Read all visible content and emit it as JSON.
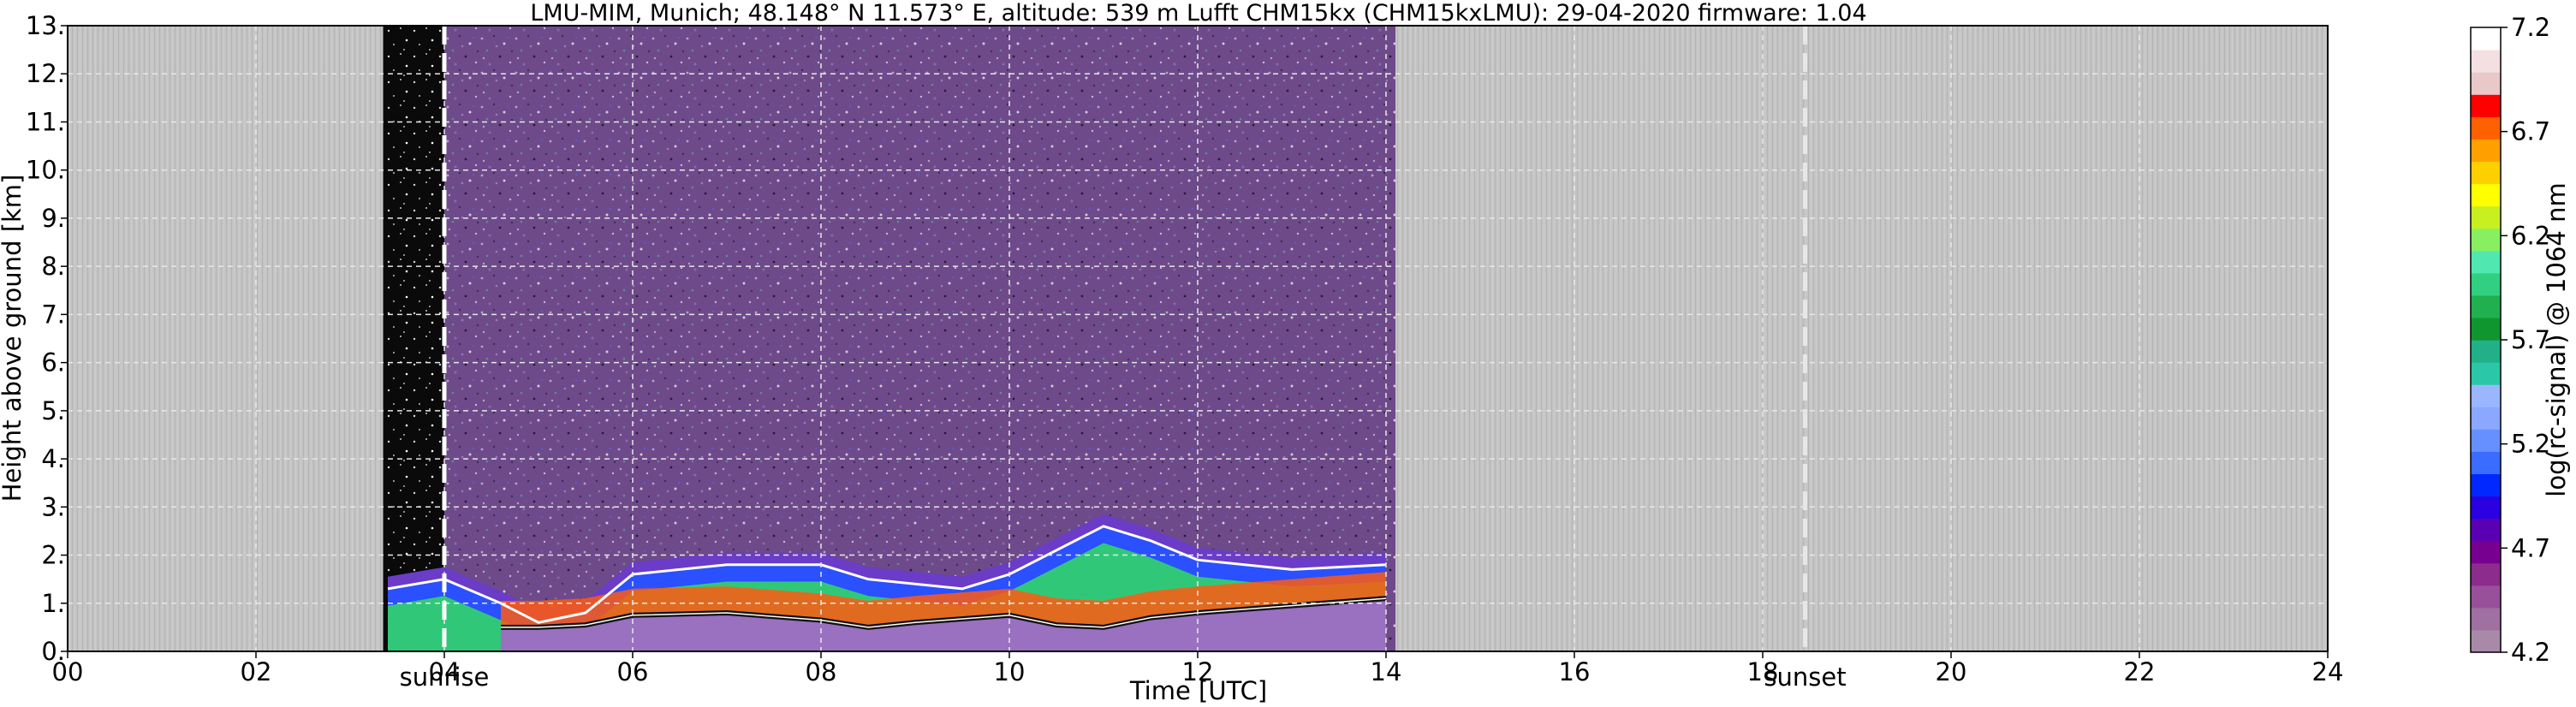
{
  "chart_data": {
    "type": "heatmap",
    "title": "LMU-MIM, Munich; 48.148° N 11.573° E, altitude: 539 m    Lufft CHM15kx (CHM15kxLMU): 29-04-2020    firmware: 1.04",
    "xlabel": "Time [UTC]",
    "ylabel": "Height above ground [km]",
    "xlim": [
      0,
      24
    ],
    "ylim": [
      0,
      13
    ],
    "x_ticks": [
      "00",
      "02",
      "04",
      "06",
      "08",
      "10",
      "12",
      "14",
      "16",
      "18",
      "20",
      "22",
      "24"
    ],
    "y_ticks": [
      "0.",
      "1.",
      "2.",
      "3.",
      "4.",
      "5.",
      "6.",
      "7.",
      "8.",
      "9.",
      "10.",
      "11.",
      "12.",
      "13."
    ],
    "grid": true,
    "data_window": [
      3.35,
      14.1
    ],
    "events": [
      {
        "label": "sunrise",
        "time": 4.0
      },
      {
        "label": "sunset",
        "time": 18.45
      }
    ],
    "colorbar": {
      "label": "log(rc-signal) @ 1064 nm",
      "range": [
        4.2,
        7.2
      ],
      "ticks": [
        "4.2",
        "4.7",
        "5.2",
        "5.7",
        "6.2",
        "6.7",
        "7.2"
      ],
      "colors": [
        "#a88aa8",
        "#a070a0",
        "#98509a",
        "#8c2c8c",
        "#780090",
        "#5a00b4",
        "#2a00e0",
        "#0028ff",
        "#3a6cff",
        "#6690ff",
        "#8aa8ff",
        "#9ab6ff",
        "#2ac8a8",
        "#22b088",
        "#10962e",
        "#20b050",
        "#30d080",
        "#50e8b0",
        "#88f060",
        "#c8f020",
        "#ffff00",
        "#ffd000",
        "#ffa000",
        "#ff6000",
        "#ff0000",
        "#e8c8c8",
        "#f4e0e0",
        "#ffffff"
      ]
    },
    "layers": [
      {
        "name": "boundary-layer-top",
        "x": [
          3.4,
          4.0,
          4.6,
          5.0,
          5.5,
          6.0,
          7.0,
          8.0,
          8.5,
          9.5,
          10.0,
          11.0,
          11.5,
          12.0,
          13.0,
          14.0
        ],
        "y": [
          1.3,
          1.5,
          1.0,
          0.6,
          0.8,
          1.6,
          1.8,
          1.8,
          1.5,
          1.3,
          1.6,
          2.6,
          2.3,
          1.9,
          1.7,
          1.8
        ]
      },
      {
        "name": "residual-layer-top",
        "x": [
          4.6,
          5.0,
          5.5,
          6.0,
          7.0,
          8.0,
          8.5,
          9.0,
          10.0,
          10.5,
          11.0,
          11.5,
          12.0,
          13.0,
          14.0
        ],
        "y": [
          0.5,
          0.5,
          0.55,
          0.75,
          0.8,
          0.65,
          0.5,
          0.6,
          0.75,
          0.55,
          0.5,
          0.7,
          0.8,
          0.95,
          1.1
        ]
      }
    ]
  }
}
